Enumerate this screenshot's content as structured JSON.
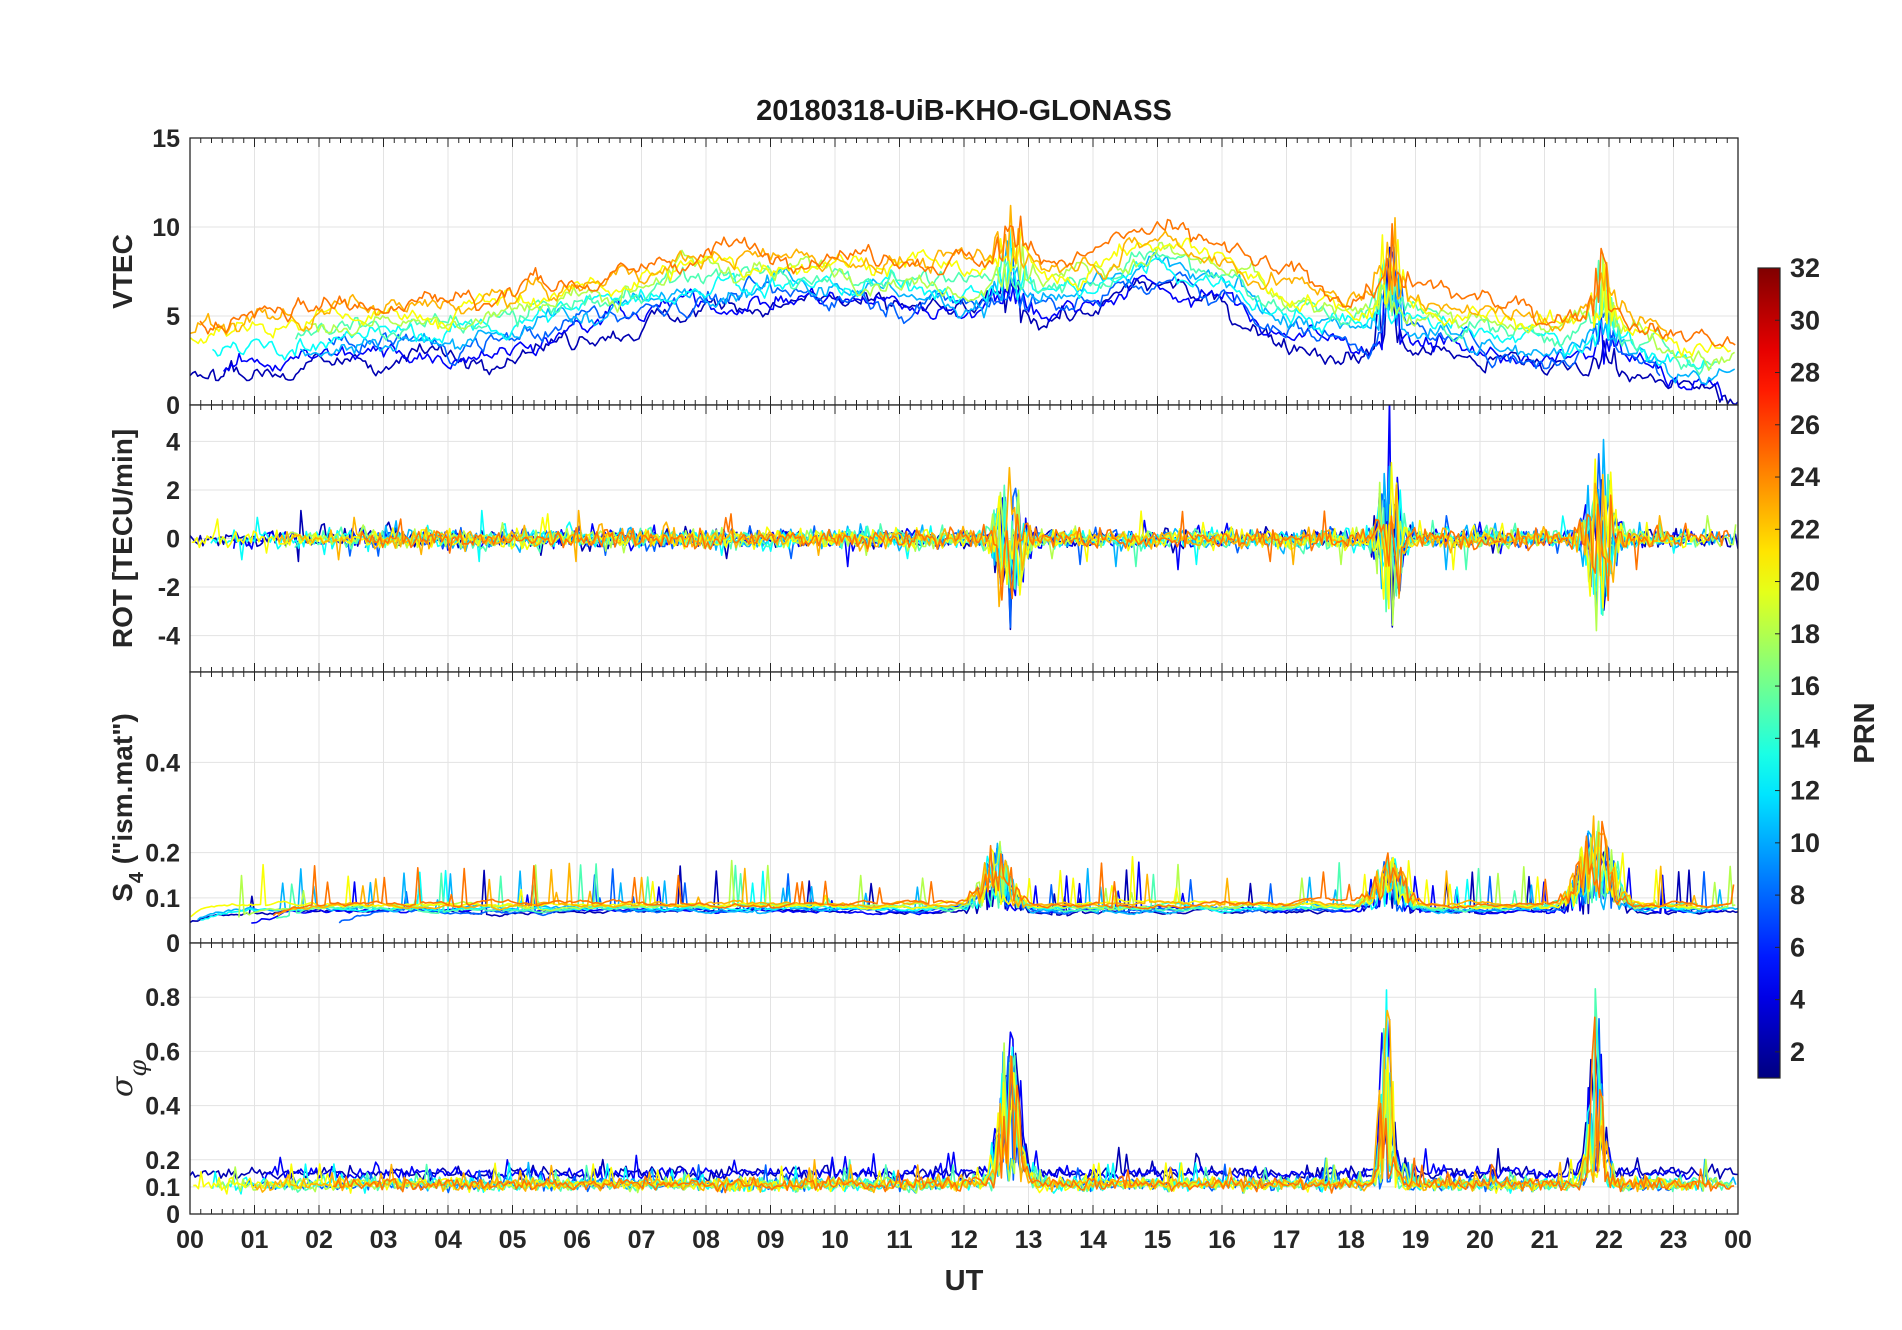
{
  "chart_data": {
    "type": "line",
    "title": "20180318-UiB-KHO-GLONASS",
    "xlabel": "UT",
    "x_tick_labels": [
      "00",
      "01",
      "02",
      "03",
      "04",
      "05",
      "06",
      "07",
      "08",
      "09",
      "10",
      "11",
      "12",
      "13",
      "14",
      "15",
      "16",
      "17",
      "18",
      "19",
      "20",
      "21",
      "22",
      "23",
      "00"
    ],
    "xlim": [
      0,
      24
    ],
    "grid": true,
    "colormap": "jet",
    "colorbar": {
      "label": "PRN",
      "range": [
        1,
        32
      ],
      "tick_labels": [
        "2",
        "4",
        "6",
        "8",
        "10",
        "12",
        "14",
        "16",
        "18",
        "20",
        "22",
        "24",
        "26",
        "28",
        "30",
        "32"
      ],
      "placement": "right"
    },
    "panels": [
      {
        "name": "vtec",
        "ylabel": "VTEC",
        "ylim": [
          0,
          15
        ],
        "y_ticks": [
          0,
          5,
          10,
          15
        ],
        "y_tick_labels": [
          "0",
          "5",
          "10",
          "15"
        ],
        "baseline_trend": [
          [
            0,
            3
          ],
          [
            2,
            4.1
          ],
          [
            4,
            4.2
          ],
          [
            6,
            5.5
          ],
          [
            8,
            7
          ],
          [
            10,
            7.2
          ],
          [
            12,
            6.6
          ],
          [
            13,
            6.5
          ],
          [
            14,
            6.9
          ],
          [
            15,
            8.2
          ],
          [
            16,
            7.1
          ],
          [
            17,
            5.4
          ],
          [
            18,
            4.6
          ],
          [
            19,
            4.8
          ],
          [
            20,
            4.1
          ],
          [
            21,
            3.6
          ],
          [
            22,
            4.1
          ],
          [
            23,
            2.6
          ],
          [
            24,
            2
          ]
        ],
        "events": [
          [
            12.75,
            4,
            0.25
          ],
          [
            18.6,
            6,
            0.2
          ],
          [
            21.9,
            4,
            0.2
          ]
        ]
      },
      {
        "name": "rot",
        "ylabel": "ROT [TECU/min]",
        "ylim": [
          -5.5,
          5.5
        ],
        "y_ticks": [
          -4,
          -2,
          0,
          2,
          4
        ],
        "y_tick_labels": [
          "-4",
          "-2",
          "0",
          "2",
          "4"
        ],
        "events": [
          [
            12.7,
            4.5,
            0.25
          ],
          [
            18.6,
            4.8,
            0.2
          ],
          [
            21.85,
            4.5,
            0.25
          ]
        ]
      },
      {
        "name": "s4",
        "ylabel": "S4 (\"ism.mat\")",
        "ylabel_main": "S",
        "ylabel_sub": "4",
        "ylabel_suffix": " (\"ism.mat\")",
        "ylim": [
          0,
          0.6
        ],
        "y_ticks": [
          0,
          0.1,
          0.2,
          0.4
        ],
        "y_tick_labels": [
          "0",
          "0.1",
          "0.2",
          "0.4"
        ],
        "events": [
          [
            12.5,
            0.15,
            0.3
          ],
          [
            18.6,
            0.12,
            0.3
          ],
          [
            21.8,
            0.2,
            0.35
          ]
        ]
      },
      {
        "name": "sigma",
        "ylabel": "σφ",
        "ylabel_main": "σ",
        "ylabel_sub": "φ",
        "ylim": [
          0,
          1
        ],
        "y_ticks": [
          0,
          0.1,
          0.2,
          0.4,
          0.6,
          0.8
        ],
        "y_tick_labels": [
          "0",
          "0.1",
          "0.2",
          "0.4",
          "0.6",
          "0.8"
        ],
        "events": [
          [
            12.7,
            0.6,
            0.2
          ],
          [
            18.55,
            0.8,
            0.12
          ],
          [
            21.8,
            0.65,
            0.15
          ]
        ]
      }
    ]
  }
}
